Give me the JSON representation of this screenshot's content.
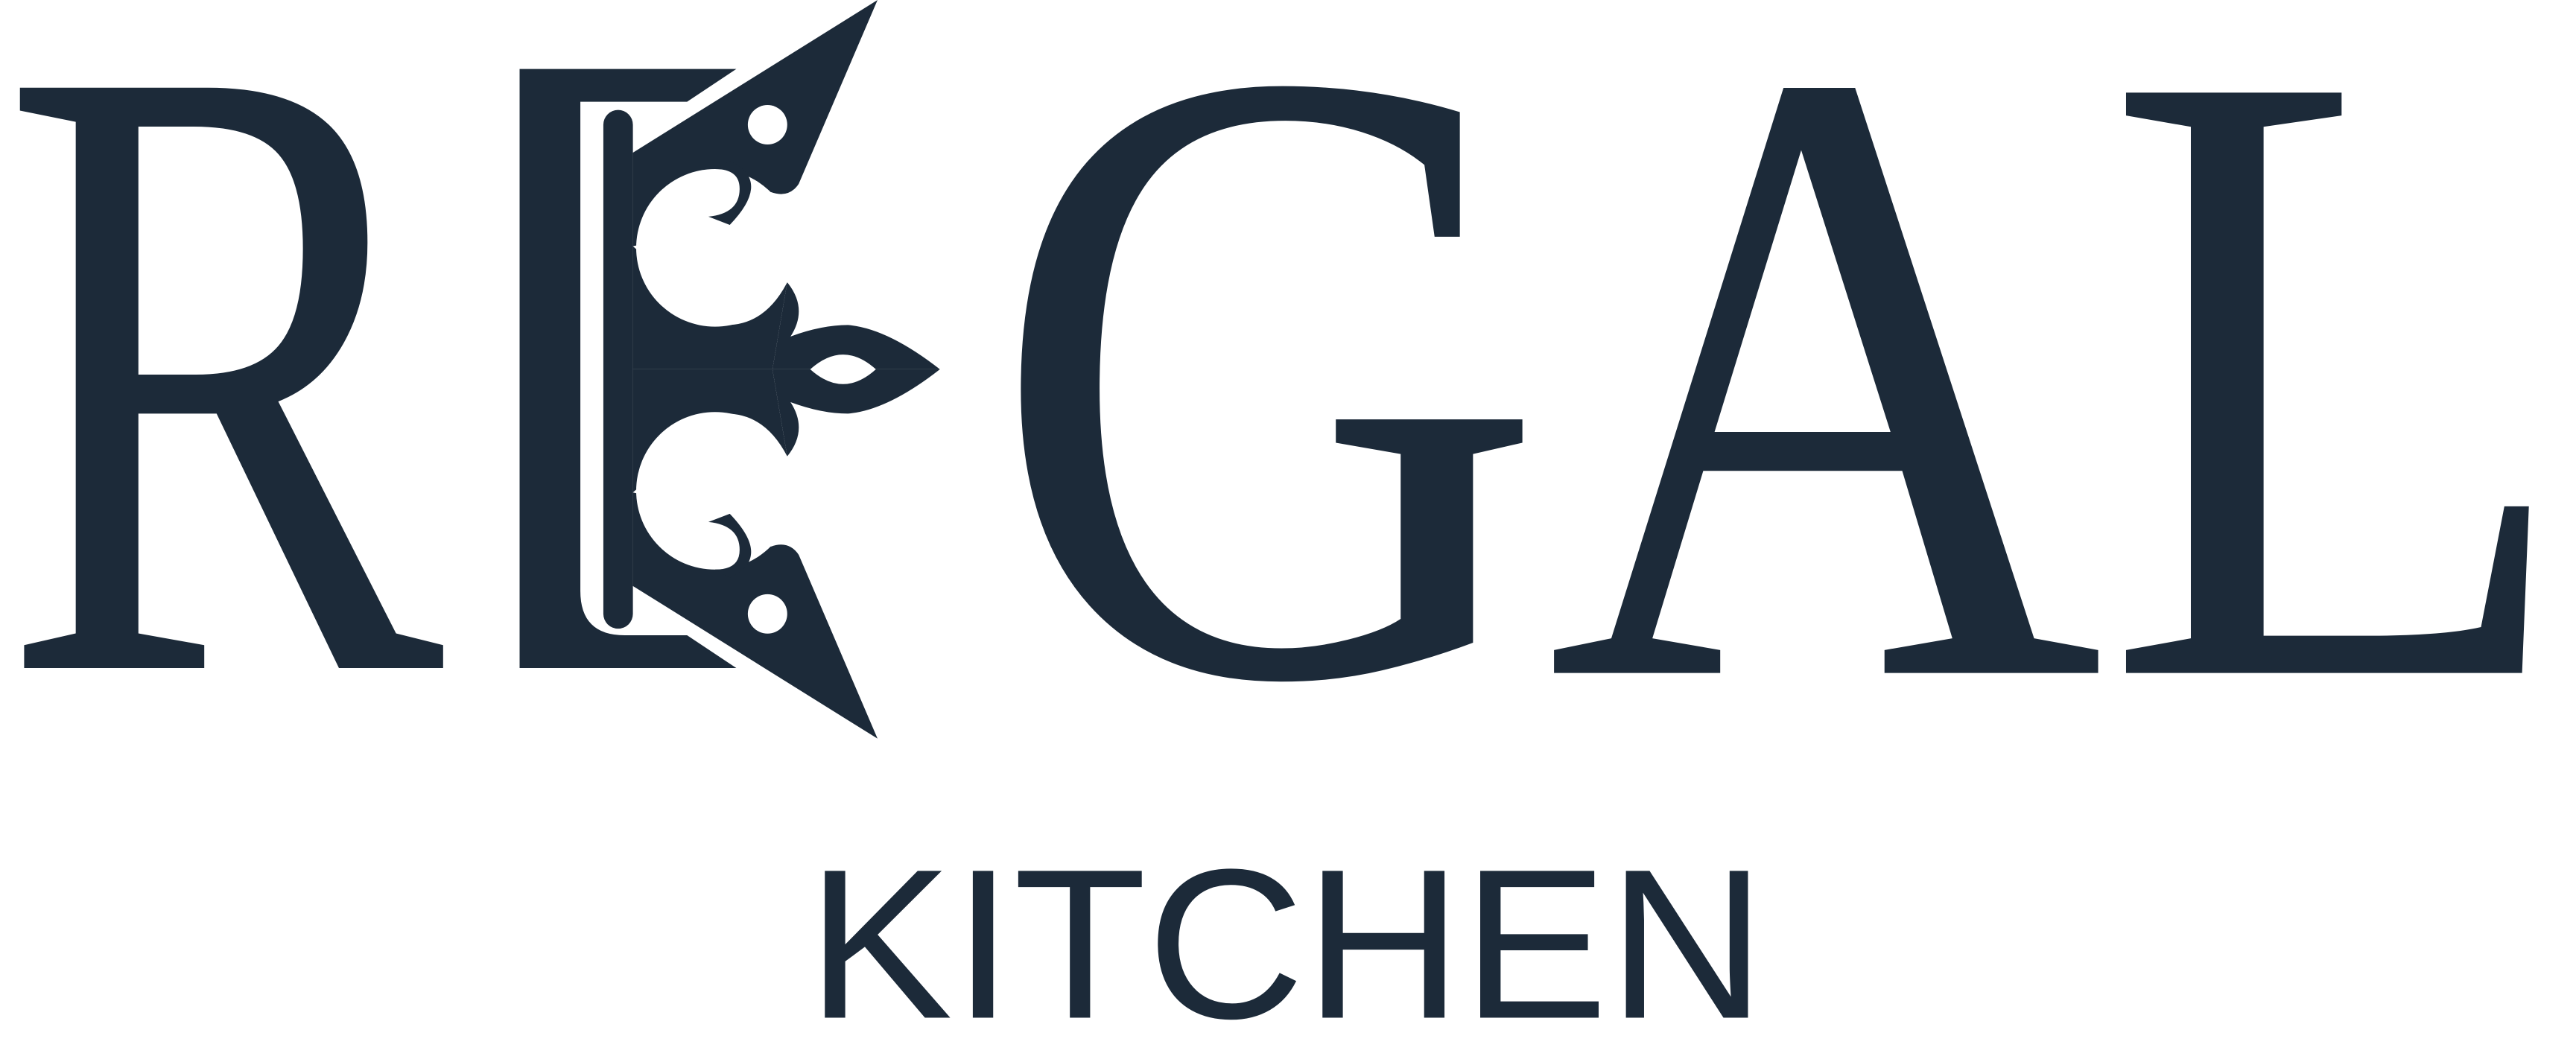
{
  "logo": {
    "initial": "R",
    "rest": "GAL",
    "tagline": "KITCHEN"
  }
}
